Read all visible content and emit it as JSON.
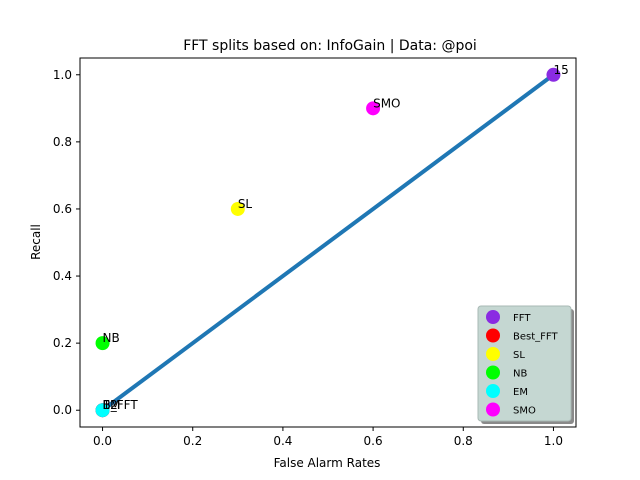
{
  "chart_data": {
    "type": "scatter",
    "title": "FFT splits based on: InfoGain  |  Data: @poi",
    "xlabel": "False Alarm Rates",
    "ylabel": "Recall",
    "xlim": [
      -0.05,
      1.05
    ],
    "ylim": [
      -0.05,
      1.05
    ],
    "x_ticks": [
      "0.0",
      "0.2",
      "0.4",
      "0.6",
      "0.8",
      "1.0"
    ],
    "y_ticks": [
      "0.0",
      "0.2",
      "0.4",
      "0.6",
      "0.8",
      "1.0"
    ],
    "grid": false,
    "legend_position": "bottom-right",
    "diagonal_line": {
      "from": [
        0,
        0
      ],
      "to": [
        1,
        1
      ],
      "color": "#1f77b4"
    },
    "series": [
      {
        "name": "FFT",
        "color": "#8a2be2",
        "points": [
          {
            "x": 1.0,
            "y": 1.0,
            "label": "15"
          },
          {
            "x": 0.0,
            "y": 0.0,
            "label": "12"
          }
        ]
      },
      {
        "name": "Best_FFT",
        "color": "#ff0000",
        "points": [
          {
            "x": 0.0,
            "y": 0.0,
            "label": "B_FFT"
          }
        ]
      },
      {
        "name": "SL",
        "color": "#ffff00",
        "points": [
          {
            "x": 0.3,
            "y": 0.6,
            "label": "SL"
          }
        ]
      },
      {
        "name": "NB",
        "color": "#00ff00",
        "points": [
          {
            "x": 0.0,
            "y": 0.2,
            "label": "NB"
          }
        ]
      },
      {
        "name": "EM",
        "color": "#00ffff",
        "points": [
          {
            "x": 0.0,
            "y": 0.0,
            "label": "EM"
          }
        ]
      },
      {
        "name": "SMO",
        "color": "#ff00ff",
        "points": [
          {
            "x": 0.6,
            "y": 0.9,
            "label": "SMO"
          }
        ]
      }
    ]
  }
}
